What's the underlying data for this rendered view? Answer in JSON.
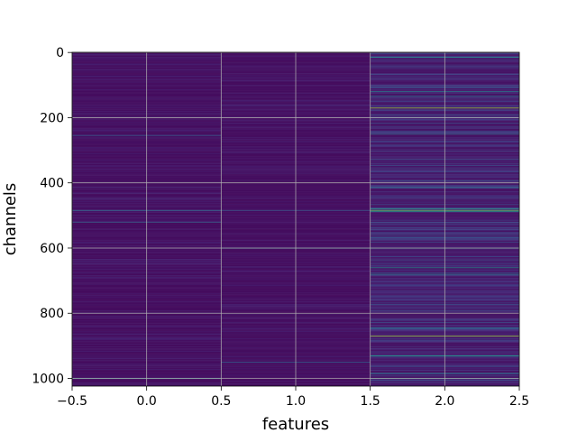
{
  "chart_data": {
    "type": "heatmap",
    "title": "",
    "xlabel": "features",
    "ylabel": "channels",
    "xlim": [
      -0.5,
      2.5
    ],
    "ylim": [
      1023.5,
      -0.5
    ],
    "y_inverted": true,
    "grid": true,
    "colormap": "viridis",
    "value_range": [
      0,
      1
    ],
    "x_ticks": [
      -0.5,
      0.0,
      0.5,
      1.0,
      1.5,
      2.0,
      2.5
    ],
    "x_tick_labels": [
      "−0.5",
      "0.0",
      "0.5",
      "1.0",
      "1.5",
      "2.0",
      "2.5"
    ],
    "y_ticks": [
      0,
      200,
      400,
      600,
      800,
      1000
    ],
    "y_tick_labels": [
      "0",
      "200",
      "400",
      "600",
      "800",
      "1000"
    ],
    "columns": [
      {
        "feature": 0,
        "background": 0.03,
        "noise": 0.07,
        "bright_channels": [
          [
            255,
            0.3
          ],
          [
            485,
            0.35
          ],
          [
            520,
            0.32
          ],
          [
            1000,
            0.5
          ]
        ]
      },
      {
        "feature": 1,
        "background": 0.03,
        "noise": 0.06,
        "bright_channels": [
          [
            485,
            0.28
          ],
          [
            600,
            0.4
          ],
          [
            950,
            0.3
          ]
        ]
      },
      {
        "feature": 2,
        "background": 0.05,
        "noise": 0.2,
        "bright_channels": [
          [
            15,
            0.5
          ],
          [
            120,
            0.45
          ],
          [
            135,
            0.4
          ],
          [
            170,
            0.85
          ],
          [
            250,
            0.35
          ],
          [
            415,
            0.4
          ],
          [
            480,
            0.6
          ],
          [
            484,
            0.75
          ],
          [
            488,
            0.55
          ],
          [
            600,
            0.45
          ],
          [
            660,
            0.5
          ],
          [
            680,
            0.45
          ],
          [
            800,
            0.02
          ],
          [
            845,
            0.4
          ],
          [
            870,
            0.85
          ],
          [
            930,
            0.55
          ],
          [
            985,
            0.45
          ],
          [
            1000,
            0.4
          ]
        ]
      }
    ]
  }
}
